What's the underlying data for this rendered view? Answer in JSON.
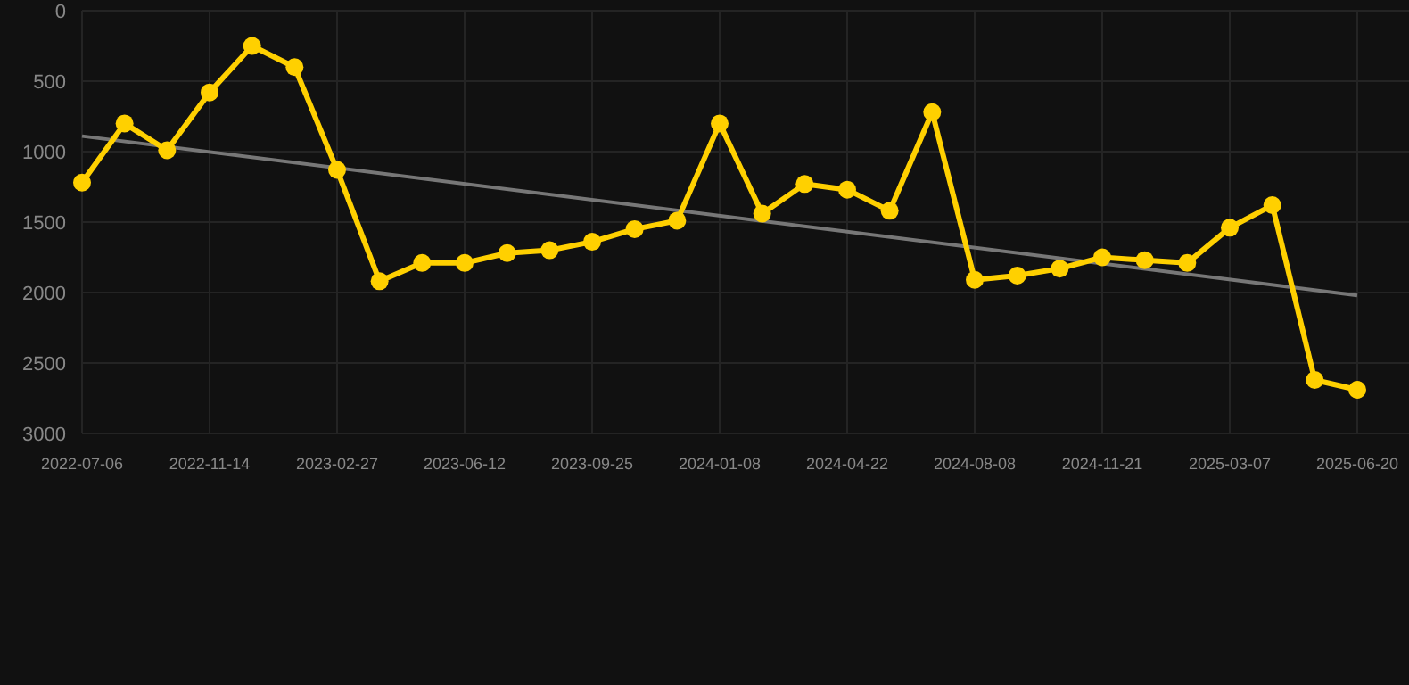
{
  "chart_data": {
    "type": "line",
    "categories": [
      "2022-07-06",
      null,
      null,
      "2022-11-14",
      null,
      null,
      "2023-02-27",
      null,
      null,
      "2023-06-12",
      null,
      null,
      "2023-09-25",
      null,
      null,
      "2024-01-08",
      null,
      null,
      "2024-04-22",
      null,
      null,
      "2024-08-08",
      null,
      null,
      "2024-11-21",
      null,
      null,
      "2025-03-07",
      null,
      null,
      "2025-06-20"
    ],
    "series": [
      {
        "color": "#ffd000",
        "marker": "circle",
        "values": [
          1220,
          800,
          990,
          580,
          250,
          400,
          1130,
          1920,
          1790,
          1790,
          1720,
          1700,
          1640,
          1550,
          1490,
          800,
          1440,
          1230,
          1270,
          1420,
          720,
          1910,
          1880,
          1830,
          1750,
          1770,
          1790,
          1540,
          1380,
          2620,
          2690
        ]
      },
      {
        "type": "line",
        "color": "#777777",
        "marker": "none",
        "values": [
          890,
          null,
          null,
          null,
          null,
          null,
          null,
          null,
          null,
          null,
          null,
          null,
          null,
          null,
          null,
          null,
          null,
          null,
          null,
          null,
          null,
          null,
          null,
          null,
          null,
          null,
          null,
          null,
          null,
          null,
          2020
        ]
      }
    ],
    "ylim": [
      3000,
      0
    ],
    "yticks": [
      0,
      500,
      1000,
      1500,
      2000,
      2500,
      3000
    ],
    "grid": true
  }
}
